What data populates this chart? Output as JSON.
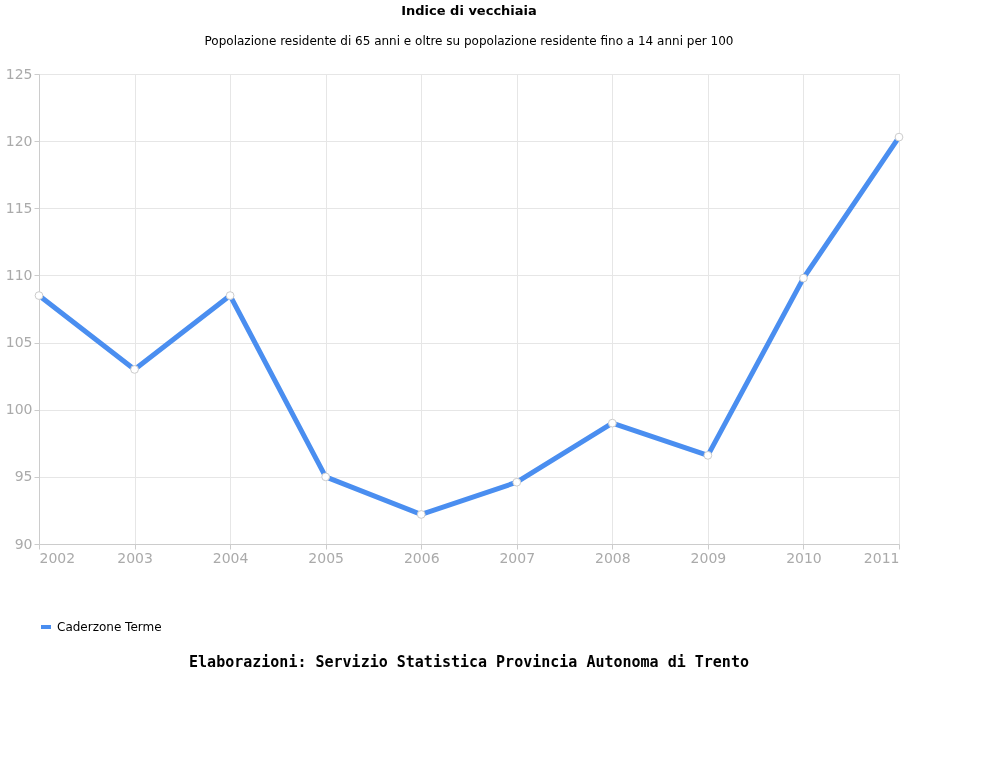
{
  "chart_data": {
    "type": "line",
    "title": "Indice di vecchiaia",
    "subtitle": "Popolazione residente di 65 anni e oltre su popolazione residente fino a 14 anni per 100",
    "categories": [
      "2002",
      "2003",
      "2004",
      "2005",
      "2006",
      "2007",
      "2008",
      "2009",
      "2010",
      "2011"
    ],
    "series": [
      {
        "name": "Caderzone Terme",
        "color": "#4a8ef0",
        "values": [
          108.5,
          103.0,
          108.5,
          95.0,
          92.2,
          94.6,
          99.0,
          96.6,
          109.8,
          120.3
        ]
      }
    ],
    "ylim": [
      90,
      125
    ],
    "yticks": [
      90,
      95,
      100,
      105,
      110,
      115,
      120,
      125
    ],
    "grid": true,
    "legend": "bottom",
    "marker": "circle",
    "line_style": "solid",
    "annotations": [
      "Elaborazioni: Servizio Statistica Provincia Autonoma di Trento"
    ]
  }
}
